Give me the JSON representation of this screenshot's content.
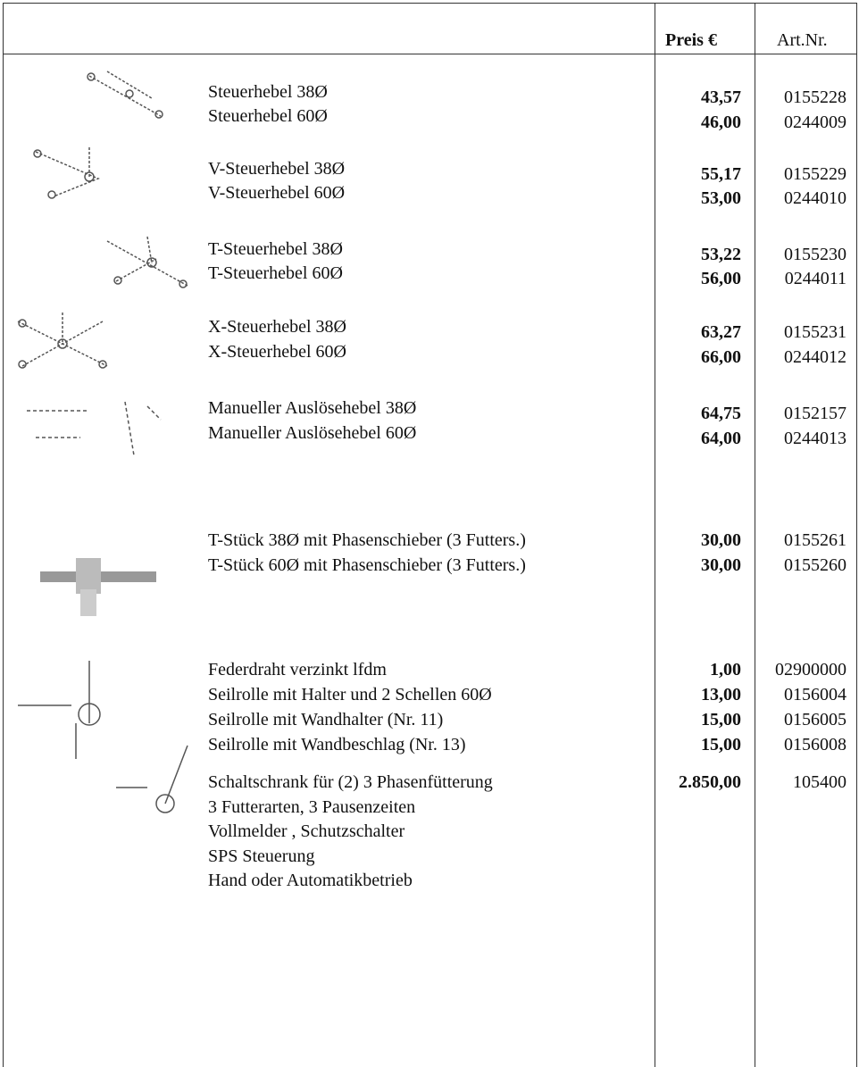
{
  "header": {
    "price": "Preis €",
    "article": "Art.Nr."
  },
  "items": [
    {
      "description": "Steuerhebel 38Ø",
      "price": "43,57",
      "article": "0155228"
    },
    {
      "description": "Steuerhebel 60Ø",
      "price": "46,00",
      "article": "0244009"
    },
    {
      "description": "V-Steuerhebel 38Ø",
      "price": "55,17",
      "article": "0155229"
    },
    {
      "description": "V-Steuerhebel 60Ø",
      "price": "53,00",
      "article": "0244010"
    },
    {
      "description": "T-Steuerhebel 38Ø",
      "price": "53,22",
      "article": "0155230"
    },
    {
      "description": "T-Steuerhebel 60Ø",
      "price": "56,00",
      "article": "0244011"
    },
    {
      "description": "X-Steuerhebel 38Ø",
      "price": "63,27",
      "article": "0155231"
    },
    {
      "description": "X-Steuerhebel 60Ø",
      "price": "66,00",
      "article": "0244012"
    },
    {
      "description": "Manueller Auslösehebel 38Ø",
      "price": "64,75",
      "article": "0152157"
    },
    {
      "description": "Manueller Auslösehebel 60Ø",
      "price": "64,00",
      "article": "0244013"
    },
    {
      "description": "T-Stück 38Ø mit Phasenschieber (3 Futters.)",
      "price": "30,00",
      "article": "0155261"
    },
    {
      "description": "T-Stück 60Ø mit Phasenschieber (3 Futters.)",
      "price": "30,00",
      "article": "0155260"
    },
    {
      "description": "Federdraht verzinkt lfdm",
      "price": "1,00",
      "article": "02900000"
    },
    {
      "description": "Seilrolle mit Halter und 2 Schellen 60Ø",
      "price": "13,00",
      "article": "0156004"
    },
    {
      "description": "Seilrolle mit Wandhalter (Nr. 11)",
      "price": "15,00",
      "article": "0156005"
    },
    {
      "description": "Seilrolle mit Wandbeschlag (Nr. 13)",
      "price": "15,00",
      "article": "0156008"
    },
    {
      "description": "Schaltschrank für (2) 3 Phasenfütterung",
      "price": "2.850,00",
      "article": "105400",
      "details": [
        "3 Futterarten, 3 Pausenzeiten",
        "Vollmelder , Schutzschalter",
        "SPS Steuerung",
        "Hand oder Automatikbetrieb"
      ]
    }
  ]
}
